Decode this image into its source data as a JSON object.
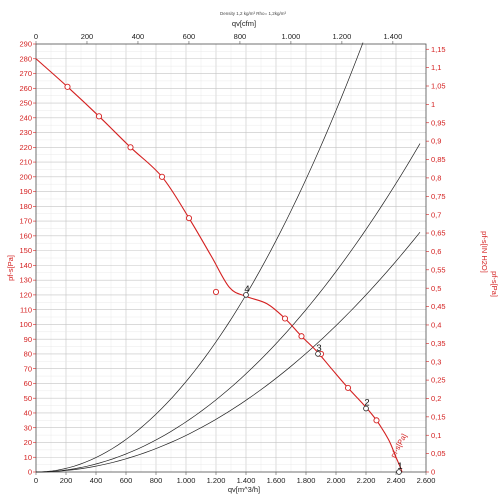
{
  "chart_data": {
    "type": "line",
    "title": "Density 1,2 kg/m³ Rho= 1,2kg/m³",
    "x_bottom": {
      "label": "qv[m^3/h]",
      "range": [
        0,
        2600
      ],
      "ticks": [
        "0",
        "200",
        "400",
        "600",
        "800",
        "1.000",
        "1.200",
        "1.400",
        "1.600",
        "1.800",
        "2.000",
        "2.200",
        "2.400",
        "2.600"
      ]
    },
    "x_top": {
      "label": "qv[cfm]",
      "range": [
        0,
        1530
      ],
      "ticks": [
        {
          "value": 0,
          "label": "0"
        },
        {
          "value": 200,
          "label": "200"
        },
        {
          "value": 400,
          "label": "400"
        },
        {
          "value": 600,
          "label": "600"
        },
        {
          "value": 800,
          "label": "800"
        },
        {
          "value": 1000,
          "label": "1.000"
        },
        {
          "value": 1200,
          "label": "1.200"
        },
        {
          "value": 1400,
          "label": "1.400"
        }
      ]
    },
    "y_left": {
      "label": "pf-s[Pa]",
      "range": [
        0,
        290
      ],
      "ticks": [
        "0",
        "10",
        "20",
        "30",
        "40",
        "50",
        "60",
        "70",
        "80",
        "90",
        "100",
        "110",
        "120",
        "130",
        "140",
        "150",
        "160",
        "170",
        "180",
        "190",
        "200",
        "210",
        "220",
        "230",
        "240",
        "250",
        "260",
        "270",
        "280",
        "290"
      ]
    },
    "y_right_labels": [
      "pf-s[IN H2O]",
      "pf-s[Pa]"
    ],
    "y_right_ticks": [
      "0",
      "0,05",
      "0,1",
      "0,15",
      "0,2",
      "0,25",
      "0,3",
      "0,35",
      "0,4",
      "0,45",
      "0,5",
      "0,55",
      "0,6",
      "0,65",
      "0,7",
      "0,75",
      "0,8",
      "0,85",
      "0,9",
      "0,95",
      "1",
      "1,05",
      "1,1",
      "1,15"
    ],
    "grid": true,
    "fan_curve": {
      "label": "pf-s[Pa]",
      "color": "#d42020",
      "x": [
        0,
        210,
        420,
        630,
        840,
        1020,
        1170,
        1290,
        1400,
        1540,
        1660,
        1770,
        1870,
        1970,
        2080,
        2190,
        2270,
        2350,
        2400,
        2430,
        2440
      ],
      "y": [
        280,
        261,
        241,
        220,
        200,
        172,
        146,
        125,
        119,
        114,
        104,
        92,
        82,
        70,
        57,
        45,
        35,
        22,
        10,
        3,
        0
      ]
    },
    "fan_markers": {
      "x": [
        210,
        420,
        630,
        840,
        1020,
        1200,
        1660,
        1770,
        1900,
        2080,
        2270
      ],
      "y": [
        261,
        241,
        220,
        200,
        172,
        122,
        104,
        92,
        80,
        57,
        35
      ]
    },
    "system_curves": [
      {
        "label": "4",
        "k": 1400,
        "x_end": 2180
      },
      {
        "label": "3",
        "k": 1880,
        "x_end": 2560
      },
      {
        "label": "2",
        "k": 2200,
        "x_end": 2560
      }
    ],
    "operating_points": [
      {
        "label": "4",
        "x": 1400,
        "y": 120
      },
      {
        "label": "3",
        "x": 1880,
        "y": 80
      },
      {
        "label": "2",
        "x": 2200,
        "y": 43
      },
      {
        "label": "1",
        "x": 2420,
        "y": 0
      }
    ],
    "line_color": "#d42020",
    "axis_color_left": "#d42020",
    "system_color": "#222222"
  }
}
